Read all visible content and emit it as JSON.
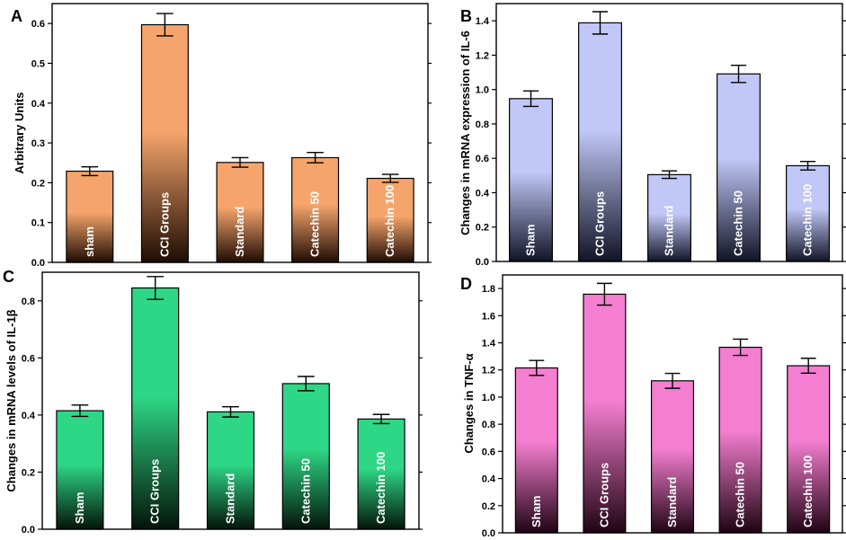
{
  "chart_data": [
    {
      "panel": "A",
      "type": "bar",
      "title": "",
      "xlabel": "",
      "ylabel": "Arbitrary Units",
      "ylabel_unicode": "",
      "categories": [
        "sham",
        "CCI Groups",
        "Standard",
        "Catechin 50",
        "Catechin 100"
      ],
      "values": [
        0.229,
        0.597,
        0.251,
        0.263,
        0.211
      ],
      "errors": [
        0.011,
        0.028,
        0.012,
        0.013,
        0.01
      ],
      "ylim": [
        0,
        0.65
      ],
      "yticks": [
        0.0,
        0.1,
        0.2,
        0.3,
        0.4,
        0.5,
        0.6
      ],
      "ytick_labels": [
        "0.0",
        "0.1",
        "0.2",
        "0.3",
        "0.4",
        "0.5",
        "0.6"
      ],
      "colors": {
        "top": "#f5a56c",
        "bottom": "#1e0c04"
      },
      "grid": false,
      "legend": "none"
    },
    {
      "panel": "B",
      "type": "bar",
      "title": "",
      "xlabel": "",
      "ylabel": "Changes in mRNA expression of IL-6",
      "ylabel_unicode": "",
      "categories": [
        "Sham",
        "CCI Groups",
        "Standard",
        "Catechin 50",
        "Catechin 100"
      ],
      "values": [
        0.947,
        1.388,
        0.505,
        1.091,
        0.557
      ],
      "errors": [
        0.045,
        0.065,
        0.022,
        0.05,
        0.025
      ],
      "ylim": [
        0,
        1.5
      ],
      "yticks": [
        0.0,
        0.2,
        0.4,
        0.6,
        0.8,
        1.0,
        1.2,
        1.4
      ],
      "ytick_labels": [
        "0.0",
        "0.2",
        "0.4",
        "0.6",
        "0.8",
        "1.0",
        "1.2",
        "1.4"
      ],
      "colors": {
        "top": "#c1c8f7",
        "bottom": "#121426"
      },
      "grid": false,
      "legend": "none"
    },
    {
      "panel": "C",
      "type": "bar",
      "title": "",
      "xlabel": "",
      "ylabel": "Changes in mRNA levels of IL-1",
      "ylabel_unicode": "β",
      "categories": [
        "Sham",
        "CCI Groups",
        "Standard",
        "Catechin 50",
        "Catechin 100"
      ],
      "values": [
        0.415,
        0.845,
        0.411,
        0.51,
        0.386
      ],
      "errors": [
        0.02,
        0.04,
        0.018,
        0.025,
        0.016
      ],
      "ylim": [
        0,
        0.9
      ],
      "yticks": [
        0.0,
        0.2,
        0.4,
        0.6,
        0.8
      ],
      "ytick_labels": [
        "0.0",
        "0.2",
        "0.4",
        "0.6",
        "0.8"
      ],
      "colors": {
        "top": "#2ed785",
        "bottom": "#04140a"
      },
      "grid": false,
      "legend": "none"
    },
    {
      "panel": "D",
      "type": "bar",
      "title": "",
      "xlabel": "",
      "ylabel": "Changes in TNF-",
      "ylabel_unicode": "α",
      "categories": [
        "Sham",
        "CCI Groups",
        "Standard",
        "Catechin 50",
        "Catechin 100"
      ],
      "values": [
        1.215,
        1.758,
        1.12,
        1.367,
        1.231
      ],
      "errors": [
        0.055,
        0.08,
        0.055,
        0.06,
        0.055
      ],
      "ylim": [
        0,
        1.9
      ],
      "yticks": [
        0.0,
        0.2,
        0.4,
        0.6,
        0.8,
        1.0,
        1.2,
        1.4,
        1.6,
        1.8
      ],
      "ytick_labels": [
        "0.0",
        "0.2",
        "0.4",
        "0.6",
        "0.8",
        "1.0",
        "1.2",
        "1.4",
        "1.6",
        "1.8"
      ],
      "colors": {
        "top": "#f47ed0",
        "bottom": "#1e0412"
      },
      "grid": false,
      "legend": "none"
    }
  ]
}
